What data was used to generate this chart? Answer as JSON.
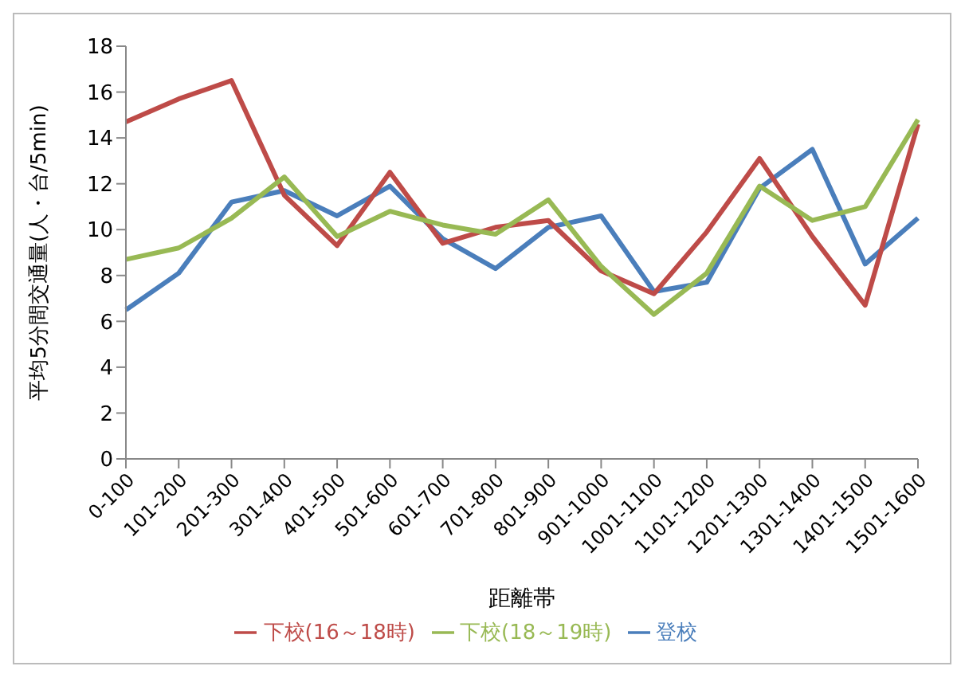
{
  "chart_data": {
    "type": "line",
    "xlabel": "距離帯",
    "ylabel": "平均5分間交通量(人・台/5min)",
    "categories": [
      "0-100",
      "101-200",
      "201-300",
      "301-400",
      "401-500",
      "501-600",
      "601-700",
      "701-800",
      "801-900",
      "901-1000",
      "1001-1100",
      "1101-1200",
      "1201-1300",
      "1301-1400",
      "1401-1500",
      "1501-1600"
    ],
    "series": [
      {
        "name": "登校",
        "color": "#4a7ebb",
        "values": [
          6.5,
          8.1,
          11.2,
          11.7,
          10.6,
          11.9,
          9.6,
          8.3,
          10.1,
          10.6,
          7.3,
          7.7,
          11.8,
          13.5,
          8.5,
          10.5
        ]
      },
      {
        "name": "下校(16～18時)",
        "color": "#be4b48",
        "values": [
          14.7,
          15.7,
          16.5,
          11.5,
          9.3,
          12.5,
          9.4,
          10.1,
          10.4,
          8.2,
          7.2,
          9.9,
          13.1,
          9.7,
          6.7,
          14.6
        ]
      },
      {
        "name": "下校(18～19時)",
        "color": "#98b954",
        "values": [
          8.7,
          9.2,
          10.5,
          12.3,
          9.7,
          10.8,
          10.2,
          9.8,
          11.3,
          8.4,
          6.3,
          8.1,
          11.9,
          10.4,
          11.0,
          14.8
        ]
      }
    ],
    "ylim": [
      0,
      18
    ],
    "yticks": [
      0,
      2,
      4,
      6,
      8,
      10,
      12,
      14,
      16,
      18
    ],
    "grid": false,
    "legend": "bottom",
    "marker": "none",
    "line_style": "solid"
  }
}
